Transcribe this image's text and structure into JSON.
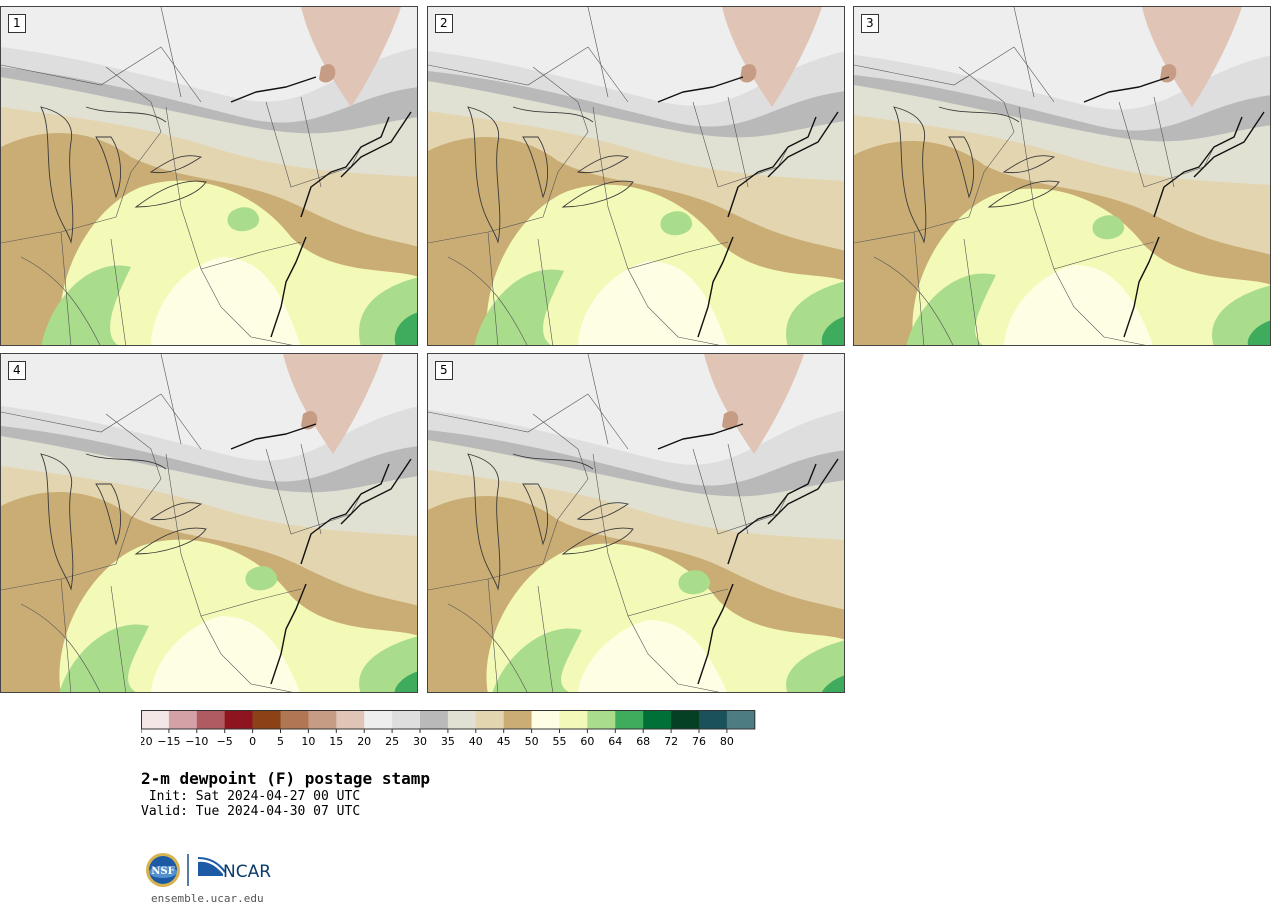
{
  "title": "2-m dewpoint (F) postage stamp",
  "init": " Init: Sat 2024-04-27 00 UTC",
  "valid": "Valid: Tue 2024-04-30 07 UTC",
  "site": "ensemble.ucar.edu",
  "logo": {
    "nsf": "NSF",
    "ncar": "NCAR"
  },
  "panels": [
    {
      "label": "1"
    },
    {
      "label": "2"
    },
    {
      "label": "3"
    },
    {
      "label": "4"
    },
    {
      "label": "5"
    }
  ],
  "colorbar": {
    "colors": [
      "#f4e6e6",
      "#d4a2a6",
      "#b05a62",
      "#8e1420",
      "#8a4216",
      "#af7753",
      "#c79c85",
      "#e0c4b6",
      "#eeeeee",
      "#dedede",
      "#b9b9b9",
      "#e1e1d3",
      "#e3d5b0",
      "#c9ad74",
      "#fefee4",
      "#f3f9b6",
      "#a9dd8c",
      "#3fab5c",
      "#007038",
      "#053f24",
      "#1a515b",
      "#4d7d82"
    ],
    "ticks": [
      "−20",
      "−15",
      "−10",
      "−5",
      "0",
      "5",
      "10",
      "15",
      "20",
      "25",
      "30",
      "35",
      "40",
      "45",
      "50",
      "55",
      "60",
      "64",
      "68",
      "72",
      "76",
      "80"
    ]
  }
}
